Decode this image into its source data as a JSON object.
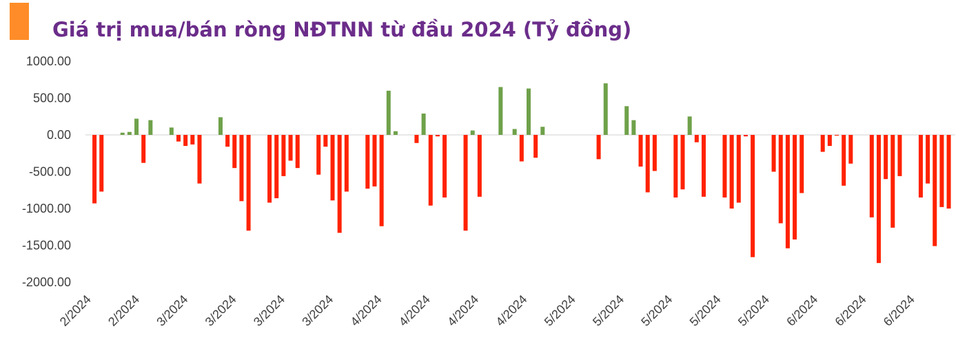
{
  "chart_data": {
    "type": "bar",
    "title": "Giá trị mua/bán ròng NĐTNN từ đầu 2024 (Tỷ đồng)",
    "xlabel": "",
    "ylabel": "",
    "ylim": [
      -2000,
      1000
    ],
    "yticks": [
      {
        "value": 1000,
        "label": "1000.00"
      },
      {
        "value": 500,
        "label": "500.00"
      },
      {
        "value": 0,
        "label": "0.00"
      },
      {
        "value": -500,
        "label": "-500.00"
      },
      {
        "value": -1000,
        "label": "-1000.00"
      },
      {
        "value": -1500,
        "label": "-1500.00"
      },
      {
        "value": -2000,
        "label": "-2000.00"
      }
    ],
    "xtick_labels": [
      "2/2024",
      "2/2024",
      "3/2024",
      "3/2024",
      "3/2024",
      "3/2024",
      "4/2024",
      "4/2024",
      "4/2024",
      "4/2024",
      "5/2024",
      "5/2024",
      "5/2024",
      "5/2024",
      "5/2024",
      "6/2024",
      "6/2024",
      "6/2024"
    ],
    "grid": false,
    "legend": "none",
    "colors": {
      "positive": "#6fa14a",
      "negative": "#ff2200",
      "accent": "#ff8c28",
      "title": "#6b2d8a"
    },
    "values": [
      -930,
      -770,
      0,
      0,
      30,
      40,
      220,
      -380,
      200,
      0,
      0,
      100,
      -90,
      -150,
      -130,
      -660,
      0,
      0,
      240,
      -160,
      -450,
      -900,
      -1300,
      0,
      0,
      -920,
      -860,
      -560,
      -350,
      -450,
      0,
      0,
      -540,
      -160,
      -890,
      -1330,
      -770,
      0,
      0,
      -730,
      -700,
      -1240,
      600,
      50,
      0,
      0,
      -110,
      290,
      -960,
      -20,
      -850,
      0,
      0,
      -1300,
      60,
      -840,
      0,
      0,
      650,
      0,
      80,
      -360,
      630,
      -310,
      110,
      0,
      0,
      0,
      0,
      0,
      0,
      0,
      -330,
      700,
      0,
      0,
      390,
      200,
      -430,
      -780,
      -490,
      0,
      0,
      -850,
      -740,
      250,
      -100,
      -840,
      0,
      0,
      -850,
      -1000,
      -920,
      -20,
      -1660,
      0,
      0,
      -500,
      -1200,
      -1540,
      -1420,
      -790,
      0,
      0,
      -230,
      -150,
      -10,
      -690,
      -390,
      0,
      0,
      -1120,
      -1740,
      -600,
      -1260,
      -560,
      0,
      0,
      -850,
      -660,
      -1510,
      -980,
      -1000
    ]
  }
}
